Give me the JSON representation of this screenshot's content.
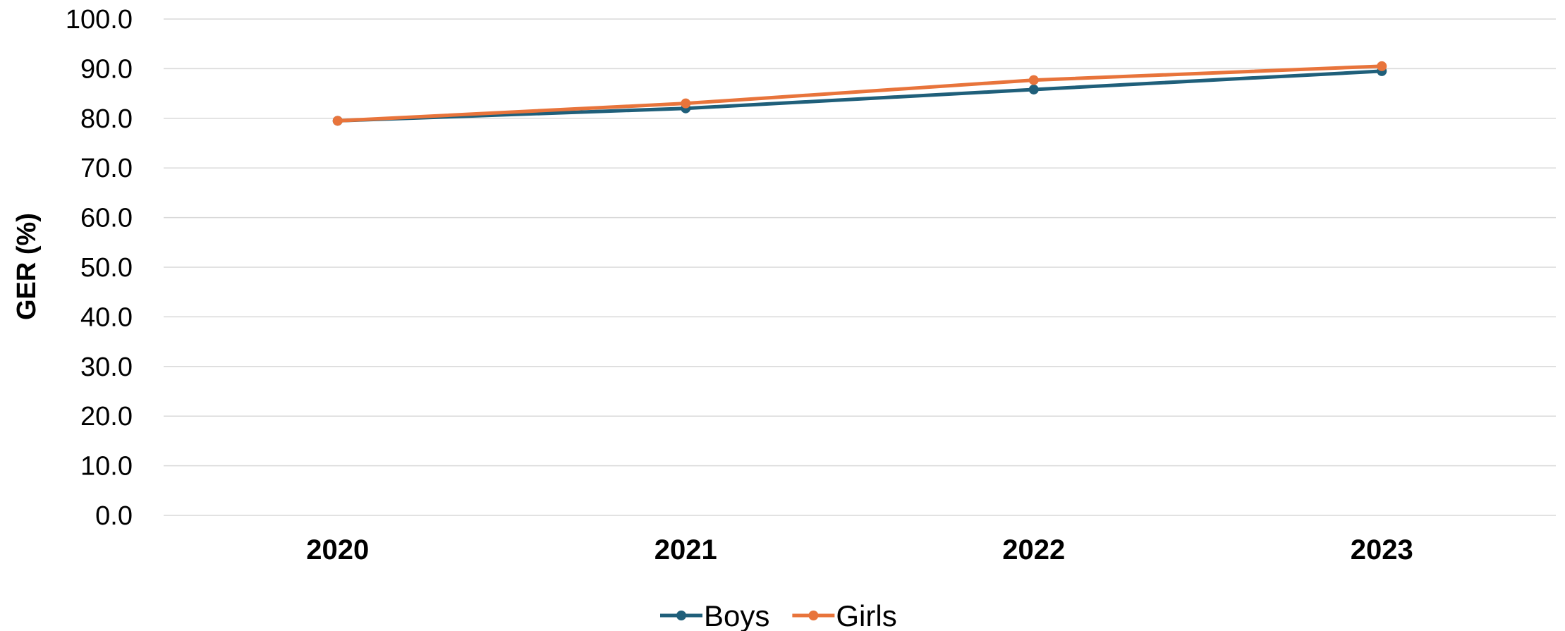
{
  "chart_data": {
    "type": "line",
    "title": "",
    "xlabel": "",
    "ylabel": "GER (%)",
    "ylim": [
      0,
      100
    ],
    "yticks": [
      "0.0",
      "10.0",
      "20.0",
      "30.0",
      "40.0",
      "50.0",
      "60.0",
      "70.0",
      "80.0",
      "90.0",
      "100.0"
    ],
    "categories": [
      "2020",
      "2021",
      "2022",
      "2023"
    ],
    "grid": true,
    "legend_position": "bottom",
    "series": [
      {
        "name": "Boys",
        "color": "#1f5f7a",
        "values": [
          79.5,
          82.0,
          85.8,
          89.5
        ]
      },
      {
        "name": "Girls",
        "color": "#e8743b",
        "values": [
          79.5,
          83.0,
          87.7,
          90.5
        ]
      }
    ]
  }
}
